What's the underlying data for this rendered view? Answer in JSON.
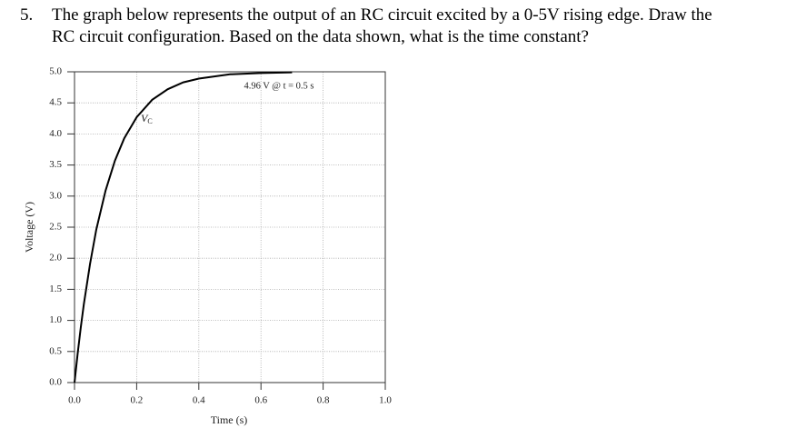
{
  "question": {
    "number": "5.",
    "lines": [
      "The graph below represents the output of an RC circuit excited by a 0-5V rising edge. Draw the",
      "RC circuit configuration. Based on the data shown, what is the time constant?"
    ]
  },
  "chart_data": {
    "type": "line",
    "xlabel": "Time (s)",
    "ylabel": "Voltage (V)",
    "x": [
      0,
      0.01,
      0.02,
      0.03,
      0.05,
      0.07,
      0.1,
      0.13,
      0.16,
      0.2,
      0.25,
      0.3,
      0.35,
      0.4,
      0.5,
      0.6,
      0.7
    ],
    "series": [
      {
        "name": "VC",
        "color": "#000000",
        "values": [
          0,
          0.46,
          0.88,
          1.26,
          1.91,
          2.46,
          3.09,
          3.57,
          3.93,
          4.27,
          4.55,
          4.72,
          4.83,
          4.89,
          4.96,
          4.98,
          4.99
        ]
      }
    ],
    "xlim": [
      0,
      1
    ],
    "ylim": [
      0,
      5
    ],
    "xticks": [
      {
        "value": 0,
        "label": "0.0"
      },
      0.2,
      0.4,
      0.6,
      0.8,
      {
        "value": 1,
        "label": "1.0"
      }
    ],
    "yticks": [
      {
        "value": 0,
        "label": "0.0"
      },
      0.5,
      {
        "value": 1,
        "label": "1.0"
      },
      1.5,
      {
        "value": 2,
        "label": "2.0"
      },
      2.5,
      {
        "value": 3,
        "label": "3.0"
      },
      3.5,
      {
        "value": 4,
        "label": "4.0"
      },
      4.5,
      {
        "value": 5,
        "label": "5.0"
      }
    ],
    "grid": true,
    "annotations": [
      "4.96 V @ t = 0.5 s"
    ],
    "curve_label": {
      "text": "V",
      "subscript": "C"
    }
  }
}
